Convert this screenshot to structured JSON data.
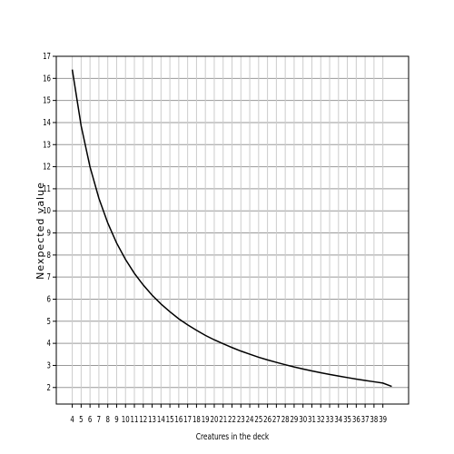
{
  "chart_data": {
    "type": "line",
    "x_label": "Creatures in the deck",
    "y_label": "Nexpected value",
    "x": [
      4,
      5,
      6,
      7,
      8,
      9,
      10,
      11,
      12,
      13,
      14,
      15,
      16,
      17,
      18,
      19,
      20,
      21,
      22,
      23,
      24,
      25,
      26,
      27,
      28,
      29,
      30,
      31,
      32,
      33,
      34,
      35,
      36,
      37,
      38,
      39,
      40
    ],
    "series": [
      {
        "color": "#000000",
        "values": [
          16.4,
          13.85,
          11.99,
          10.57,
          9.45,
          8.54,
          7.8,
          7.17,
          6.64,
          6.18,
          5.78,
          5.43,
          5.11,
          4.84,
          4.59,
          4.36,
          4.16,
          3.98,
          3.81,
          3.65,
          3.51,
          3.37,
          3.25,
          3.14,
          3.03,
          2.93,
          2.84,
          2.75,
          2.67,
          2.59,
          2.52,
          2.45,
          2.38,
          2.32,
          2.26,
          2.2,
          2.05
        ]
      }
    ],
    "xlim": [
      2.2,
      41.9
    ],
    "ylim": [
      1.25,
      17
    ],
    "xticks": [
      4,
      5,
      6,
      7,
      8,
      9,
      10,
      11,
      12,
      13,
      14,
      15,
      16,
      17,
      18,
      19,
      20,
      21,
      22,
      23,
      24,
      25,
      26,
      27,
      28,
      29,
      30,
      31,
      32,
      33,
      34,
      35,
      36,
      37,
      38,
      39
    ],
    "yticks": [
      2,
      3,
      4,
      5,
      6,
      7,
      8,
      9,
      10,
      11,
      12,
      13,
      14,
      15,
      16,
      17
    ],
    "grid": true
  }
}
